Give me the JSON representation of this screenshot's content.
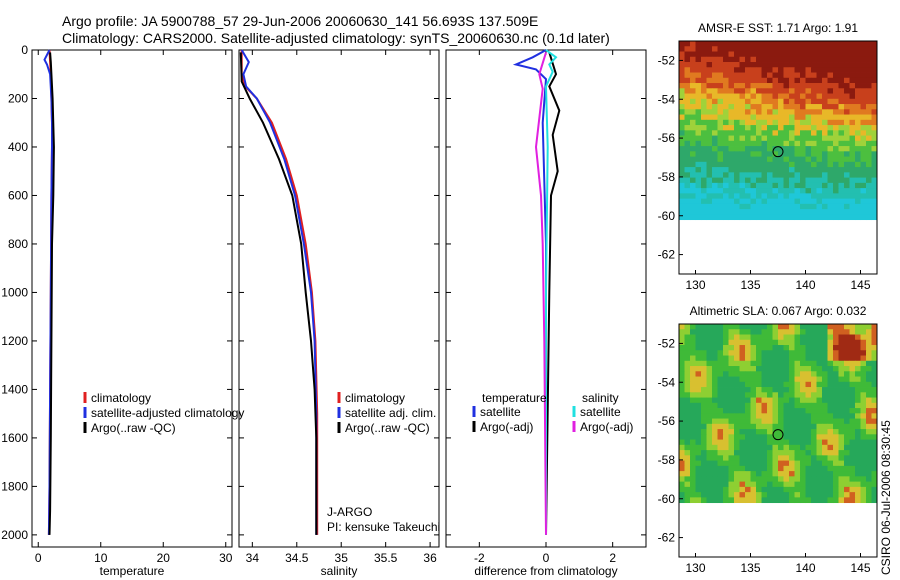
{
  "header": {
    "line1": "Argo profile: JA 5900788_57 29-Jun-2006 20060630_141 56.693S 137.509E",
    "line2": "Climatology: CARS2000. Satellite-adjusted climatology: synTS_20060630.nc (0.1d later)"
  },
  "watermark": "CSIRO 06-Jul-2006 08:30:45",
  "colors": {
    "climatology": "#e02020",
    "satellite": "#2030e0",
    "argo": "#000000",
    "satellite_salinity": "#20e0e0",
    "argo_adj_salinity": "#e020e0"
  },
  "chart_data": [
    {
      "type": "line",
      "panel": "temperature",
      "xlabel": "temperature",
      "ylabel": "",
      "xlim": [
        -1,
        31
      ],
      "ylim": [
        2050,
        0
      ],
      "xticks": [
        0,
        10,
        20,
        30
      ],
      "xtick_labels": [
        "0",
        "10",
        "20",
        "30"
      ],
      "yticks": [
        0,
        200,
        400,
        600,
        800,
        1000,
        1200,
        1400,
        1600,
        1800,
        2000
      ],
      "ytick_labels": [
        "0",
        "200",
        "400",
        "600",
        "800",
        "1000",
        "1200",
        "1400",
        "1600",
        "1800",
        "2000"
      ],
      "legend": [
        "climatology",
        "satellite-adjusted climatology",
        "Argo(..raw -QC)"
      ],
      "series": [
        {
          "name": "climatology",
          "color": "#e02020",
          "x": [
            1.8,
            1.9,
            2.0,
            2.1,
            2.2,
            2.2,
            2.1,
            2.0,
            1.9,
            1.8,
            1.7
          ],
          "y": [
            0,
            50,
            100,
            200,
            300,
            400,
            600,
            1000,
            1400,
            1800,
            2000
          ]
        },
        {
          "name": "satellite-adjusted climatology",
          "color": "#2030e0",
          "x": [
            1.8,
            1.0,
            1.4,
            1.9,
            2.1,
            2.2,
            2.2,
            2.1,
            2.0,
            1.9,
            1.8,
            1.7
          ],
          "y": [
            0,
            40,
            60,
            100,
            200,
            300,
            400,
            600,
            1000,
            1400,
            1800,
            2000
          ]
        },
        {
          "name": "Argo(..raw -QC)",
          "color": "#000000",
          "x": [
            1.9,
            2.0,
            2.1,
            2.3,
            2.5,
            2.4,
            2.2,
            2.1,
            2.0,
            1.9,
            1.8
          ],
          "y": [
            10,
            50,
            100,
            200,
            400,
            600,
            800,
            1200,
            1600,
            1900,
            2000
          ]
        }
      ]
    },
    {
      "type": "line",
      "panel": "salinity",
      "xlabel": "salinity",
      "ylabel": "",
      "xlim": [
        33.85,
        36.1
      ],
      "ylim": [
        2050,
        0
      ],
      "xticks": [
        34,
        34.5,
        35,
        35.5,
        36
      ],
      "xtick_labels": [
        "34",
        "34.5",
        "35",
        "35.5",
        "36"
      ],
      "legend": [
        "climatology",
        "satellite adj. clim.",
        "Argo(..raw -QC)"
      ],
      "annotations": [
        "J-ARGO",
        "PI: kensuke Takeuchi"
      ],
      "series": [
        {
          "name": "climatology",
          "color": "#e02020",
          "x": [
            33.88,
            33.88,
            33.92,
            34.05,
            34.22,
            34.38,
            34.5,
            34.6,
            34.67,
            34.71,
            34.73,
            34.73
          ],
          "y": [
            0,
            100,
            150,
            200,
            300,
            450,
            600,
            800,
            1000,
            1200,
            1500,
            2000
          ]
        },
        {
          "name": "satellite adj. clim.",
          "color": "#2030e0",
          "x": [
            33.88,
            33.96,
            33.9,
            33.93,
            34.05,
            34.2,
            34.36,
            34.48,
            34.58,
            34.66,
            34.7,
            34.72,
            34.72
          ],
          "y": [
            0,
            50,
            100,
            150,
            200,
            300,
            450,
            600,
            800,
            1000,
            1200,
            1500,
            2000
          ]
        },
        {
          "name": "Argo(..raw -QC)",
          "color": "#000000",
          "x": [
            33.87,
            33.88,
            33.97,
            34.12,
            34.3,
            34.45,
            34.55,
            34.6,
            34.66,
            34.7,
            34.72,
            34.72
          ],
          "y": [
            10,
            130,
            200,
            300,
            450,
            600,
            800,
            1000,
            1200,
            1400,
            1600,
            2000
          ]
        }
      ]
    },
    {
      "type": "line",
      "panel": "difference",
      "xlabel": "difference from climatology",
      "ylabel": "",
      "xlim": [
        -3,
        3
      ],
      "ylim": [
        2050,
        0
      ],
      "xticks": [
        -2,
        0,
        2
      ],
      "xtick_labels": [
        "-2",
        "0",
        "2"
      ],
      "legend_left_title": "temperature",
      "legend_left": [
        "satellite",
        "Argo(-adj)"
      ],
      "legend_right_title": "salinity",
      "legend_right": [
        "satellite",
        "Argo(-adj)"
      ],
      "series": [
        {
          "name": "temperature satellite",
          "color": "#2030e0",
          "x": [
            0.0,
            -0.4,
            -0.9,
            -0.3,
            0.0,
            -0.1,
            0.0,
            0.0
          ],
          "y": [
            0,
            30,
            60,
            80,
            120,
            300,
            800,
            2000
          ]
        },
        {
          "name": "temperature Argo(-adj)",
          "color": "#000000",
          "x": [
            0.1,
            0.3,
            0.1,
            0.4,
            0.2,
            0.35,
            0.15,
            0.1,
            0.0
          ],
          "y": [
            10,
            100,
            150,
            250,
            350,
            500,
            600,
            1000,
            2000
          ]
        },
        {
          "name": "salinity satellite",
          "color": "#20e0e0",
          "x": [
            0.0,
            0.3,
            0.1,
            0.2,
            0.0,
            0.05,
            0.0,
            0.0
          ],
          "y": [
            0,
            30,
            60,
            90,
            150,
            400,
            1000,
            2000
          ]
        },
        {
          "name": "salinity Argo(-adj)",
          "color": "#e020e0",
          "x": [
            0.0,
            -0.2,
            -0.1,
            -0.3,
            -0.15,
            -0.1,
            -0.05,
            0.0
          ],
          "y": [
            10,
            100,
            160,
            400,
            600,
            800,
            1200,
            2000
          ]
        }
      ]
    },
    {
      "type": "heatmap",
      "panel": "sst-map",
      "title": "AMSR-E SST: 1.71 Argo: 1.91",
      "xlim": [
        128.5,
        146.5
      ],
      "ylim": [
        -63,
        -51
      ],
      "xticks": [
        130,
        135,
        140,
        145
      ],
      "xtick_labels": [
        "130",
        "135",
        "140",
        "145"
      ],
      "yticks": [
        -52,
        -54,
        -56,
        -58,
        -60,
        -62
      ],
      "ytick_labels": [
        "-52",
        "-54",
        "-56",
        "-58",
        "-60",
        "-62"
      ],
      "data_lat_range": [
        -60.2,
        -51
      ],
      "argo_position": {
        "lon": 137.5,
        "lat": -56.7
      }
    },
    {
      "type": "heatmap",
      "panel": "sla-map",
      "title": "Altimetric SLA: 0.067 Argo: 0.032",
      "xlim": [
        128.5,
        146.5
      ],
      "ylim": [
        -63,
        -51
      ],
      "xticks": [
        130,
        135,
        140,
        145
      ],
      "xtick_labels": [
        "130",
        "135",
        "140",
        "145"
      ],
      "yticks": [
        -52,
        -54,
        -56,
        -58,
        -60,
        -62
      ],
      "ytick_labels": [
        "-52",
        "-54",
        "-56",
        "-58",
        "-60",
        "-62"
      ],
      "data_lat_range": [
        -60.2,
        -51
      ],
      "argo_position": {
        "lon": 137.5,
        "lat": -56.7
      }
    }
  ]
}
